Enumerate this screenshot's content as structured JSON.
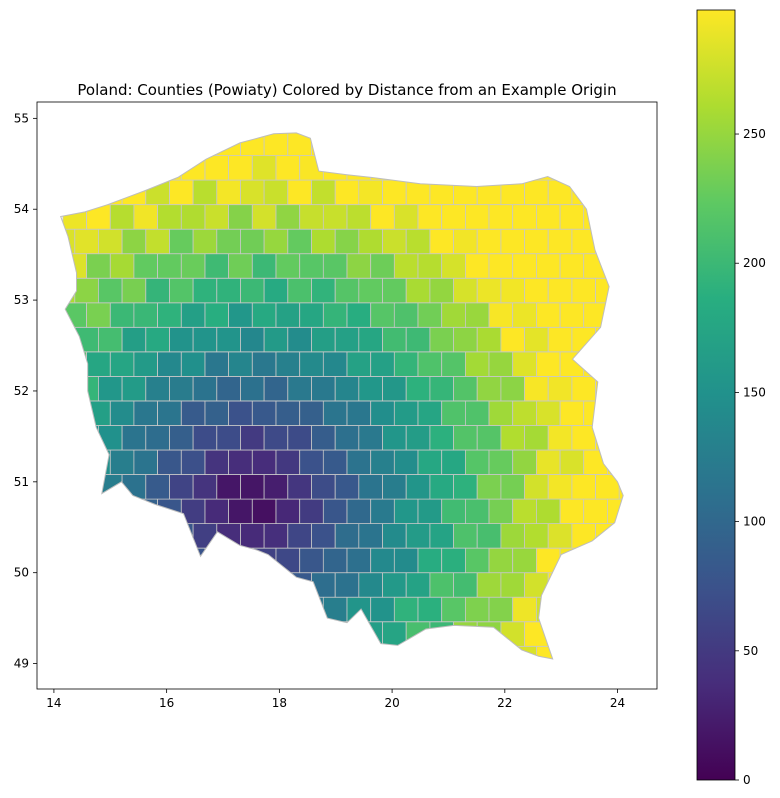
{
  "chart_data": {
    "type": "heatmap",
    "title": "Poland: Counties (Powiaty) Colored by Distance from an Example Origin",
    "xlabel": "",
    "ylabel": "",
    "x_range": [
      13.7,
      24.7
    ],
    "y_range": [
      48.72,
      55.18
    ],
    "x_ticks": [
      "14",
      "16",
      "18",
      "20",
      "22",
      "24"
    ],
    "y_ticks": [
      "49",
      "50",
      "51",
      "52",
      "53",
      "54",
      "55"
    ],
    "colorbar": {
      "colormap": "viridis",
      "range": [
        0,
        298
      ],
      "ticks": [
        "0",
        "50",
        "100",
        "150",
        "200",
        "250"
      ]
    },
    "origin_lonlat": [
      17.5,
      50.8
    ],
    "outline_lonlat": [
      [
        14.12,
        53.92
      ],
      [
        14.55,
        53.97
      ],
      [
        14.95,
        54.05
      ],
      [
        15.6,
        54.2
      ],
      [
        16.2,
        54.35
      ],
      [
        16.7,
        54.55
      ],
      [
        17.3,
        54.73
      ],
      [
        17.9,
        54.83
      ],
      [
        18.3,
        54.84
      ],
      [
        18.55,
        54.78
      ],
      [
        18.7,
        54.42
      ],
      [
        19.2,
        54.38
      ],
      [
        19.63,
        54.35
      ],
      [
        20.5,
        54.28
      ],
      [
        21.5,
        54.25
      ],
      [
        22.3,
        54.28
      ],
      [
        22.76,
        54.36
      ],
      [
        23.15,
        54.25
      ],
      [
        23.45,
        54.0
      ],
      [
        23.6,
        53.55
      ],
      [
        23.85,
        53.15
      ],
      [
        23.7,
        52.7
      ],
      [
        23.2,
        52.35
      ],
      [
        23.65,
        52.1
      ],
      [
        23.55,
        51.6
      ],
      [
        23.75,
        51.2
      ],
      [
        24.0,
        51.0
      ],
      [
        24.1,
        50.85
      ],
      [
        23.95,
        50.55
      ],
      [
        23.55,
        50.35
      ],
      [
        23.0,
        50.2
      ],
      [
        22.65,
        49.75
      ],
      [
        22.6,
        49.5
      ],
      [
        22.85,
        49.05
      ],
      [
        22.6,
        49.08
      ],
      [
        22.3,
        49.15
      ],
      [
        21.8,
        49.4
      ],
      [
        21.1,
        49.42
      ],
      [
        20.6,
        49.38
      ],
      [
        20.1,
        49.2
      ],
      [
        19.8,
        49.22
      ],
      [
        19.45,
        49.6
      ],
      [
        19.2,
        49.45
      ],
      [
        18.85,
        49.5
      ],
      [
        18.6,
        49.9
      ],
      [
        18.3,
        49.95
      ],
      [
        17.8,
        50.2
      ],
      [
        17.6,
        50.25
      ],
      [
        17.3,
        50.3
      ],
      [
        16.9,
        50.45
      ],
      [
        16.6,
        50.18
      ],
      [
        16.3,
        50.65
      ],
      [
        15.8,
        50.75
      ],
      [
        15.4,
        50.85
      ],
      [
        15.2,
        51.0
      ],
      [
        14.85,
        50.87
      ],
      [
        14.98,
        51.3
      ],
      [
        14.75,
        51.6
      ],
      [
        14.6,
        52.0
      ],
      [
        14.6,
        52.3
      ],
      [
        14.45,
        52.6
      ],
      [
        14.2,
        52.9
      ],
      [
        14.4,
        53.1
      ],
      [
        14.4,
        53.3
      ],
      [
        14.25,
        53.7
      ],
      [
        14.12,
        53.92
      ]
    ]
  }
}
